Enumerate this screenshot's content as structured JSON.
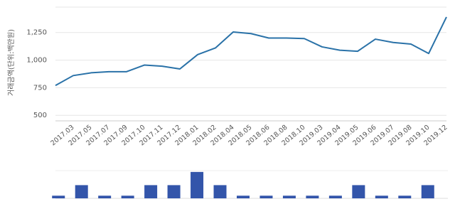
{
  "chart_data": [
    {
      "type": "line",
      "y_label": "거래금액(단위:백만원)",
      "categories": [
        null,
        "2017.03",
        "2017.05",
        "2017.07",
        "2017.09",
        "2017.10",
        "2017.11",
        "2017.12",
        "2018.01",
        "2018.02",
        "2018.04",
        "2018.05",
        "2018.06",
        "2018.08",
        "2018.10",
        "2019.03",
        "2019.04",
        "2019.05",
        "2019.06",
        "2019.07",
        "2019.08",
        "2019.10",
        "2019.12"
      ],
      "values": [
        770,
        860,
        885,
        895,
        895,
        955,
        945,
        920,
        1050,
        1110,
        1255,
        1240,
        1200,
        1200,
        1195,
        1120,
        1090,
        1080,
        1190,
        1160,
        1145,
        1060,
        1390
      ],
      "color": "#2a72a8",
      "ylim": [
        450,
        1480
      ],
      "yticks": [
        500,
        750,
        {
          "value": 1000,
          "label": "1,000"
        },
        {
          "value": 1250,
          "label": "1,250"
        }
      ],
      "grid": true
    },
    {
      "type": "bar",
      "categories": [
        null,
        null,
        null,
        null,
        null,
        null,
        null,
        null,
        null,
        null,
        null,
        null,
        null,
        null,
        null,
        null,
        null
      ],
      "values": [
        1,
        5,
        1,
        1,
        5,
        5,
        10,
        5,
        1,
        1,
        1,
        1,
        1,
        5,
        1,
        1,
        5
      ],
      "color": "#3355aa",
      "ylim": [
        0,
        10.5
      ]
    }
  ]
}
